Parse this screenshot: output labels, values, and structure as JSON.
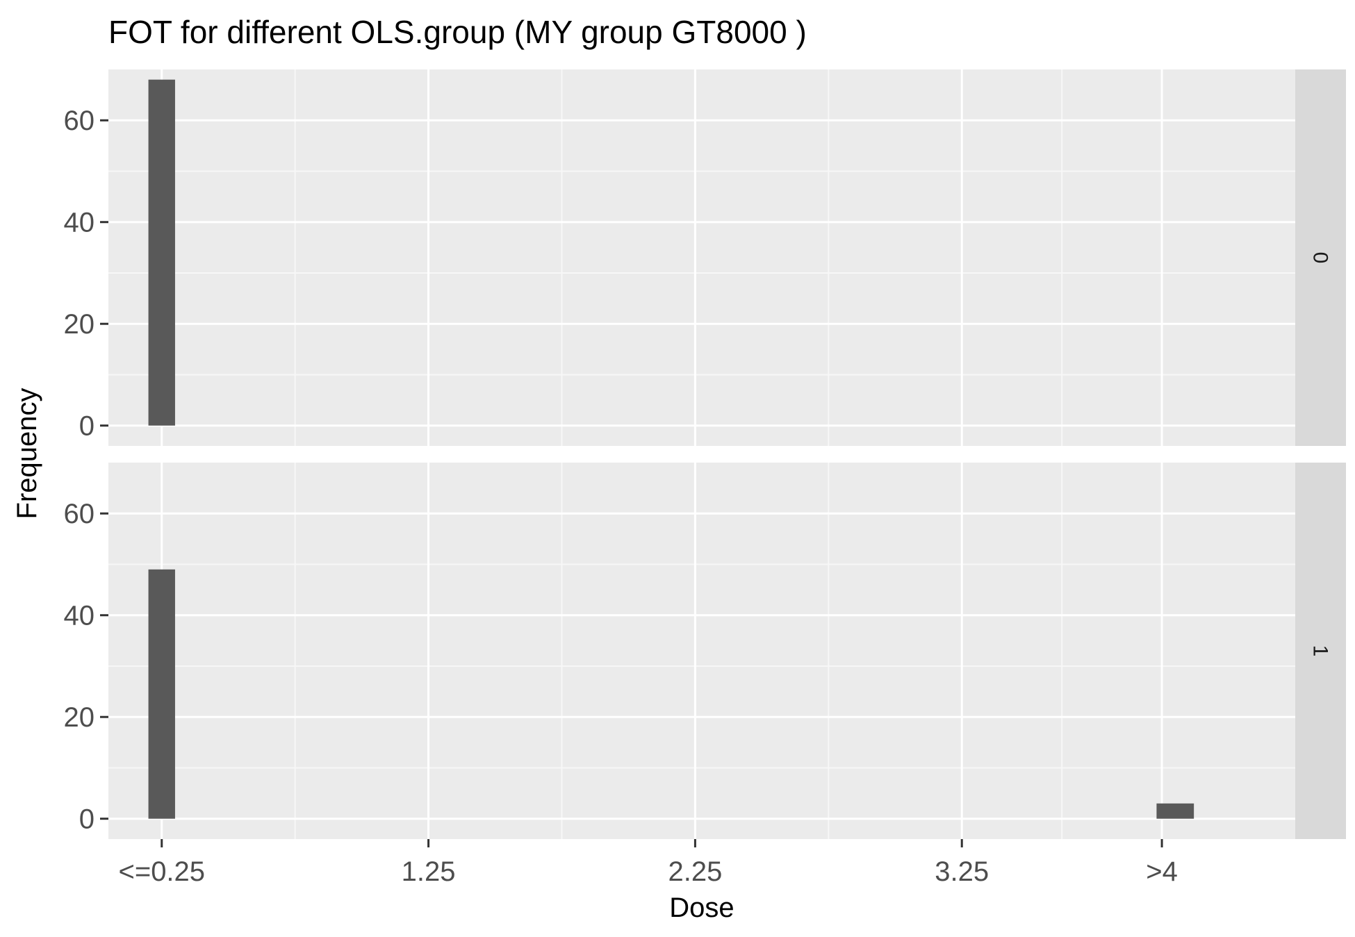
{
  "chart_data": {
    "type": "bar",
    "title": "FOT for different OLS.group     (MY group GT8000 )",
    "xlabel": "Dose",
    "ylabel": "Frequency",
    "x_tick_labels": [
      {
        "value": 0.25,
        "label": "<=0.25"
      },
      {
        "value": 1.25,
        "label": "1.25"
      },
      {
        "value": 2.25,
        "label": "2.25"
      },
      {
        "value": 3.25,
        "label": "3.25"
      },
      {
        "value": 4.0,
        "label": ">4"
      }
    ],
    "x_minor_breaks": [
      0.75,
      1.75,
      2.75,
      3.625
    ],
    "xlim": [
      0.05,
      4.5
    ],
    "ylim": [
      -4,
      70
    ],
    "y_ticks": [
      0,
      20,
      40,
      60
    ],
    "y_minor_ticks": [
      10,
      30,
      50
    ],
    "grid": true,
    "facets": [
      {
        "strip_label": "0",
        "bars": [
          {
            "x_start": 0.2,
            "x_end": 0.3,
            "value": 68
          }
        ]
      },
      {
        "strip_label": "1",
        "bars": [
          {
            "x_start": 0.2,
            "x_end": 0.3,
            "value": 49
          },
          {
            "x_start": 3.98,
            "x_end": 4.12,
            "value": 3
          }
        ]
      }
    ],
    "colors": {
      "bar": "#595959",
      "panel_background": "#ebebeb",
      "strip_background": "#d9d9d9",
      "grid_major": "#ffffff",
      "grid_minor": "#f7f7f7",
      "tick_text": "#4d4d4d"
    }
  }
}
